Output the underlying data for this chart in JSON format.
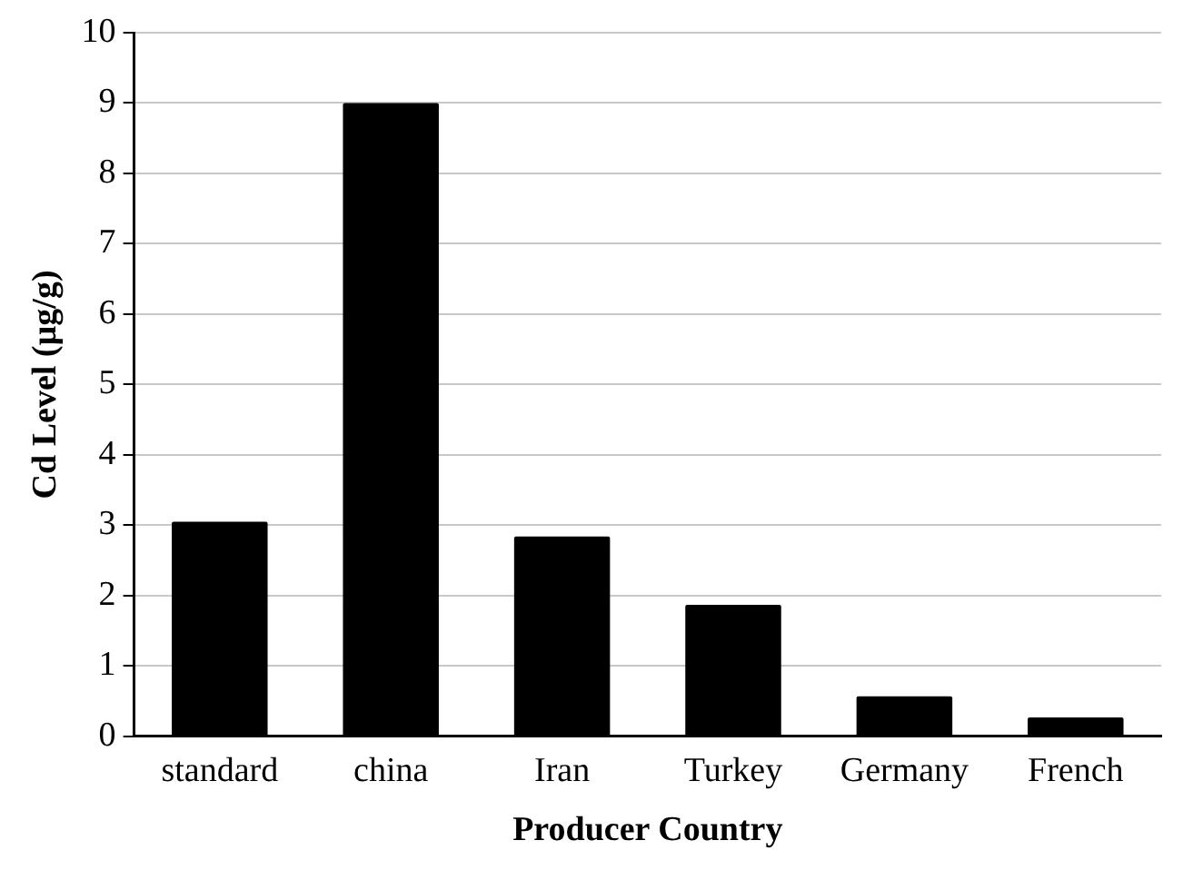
{
  "chart_data": {
    "type": "bar",
    "xlabel": "Producer Country",
    "ylabel": "Cd Level (µg/g)",
    "categories": [
      "standard",
      "china",
      "Iran",
      "Turkey",
      "Germany",
      "French"
    ],
    "values": [
      3.05,
      9.0,
      2.84,
      1.87,
      0.57,
      0.27
    ],
    "color": "#000000",
    "ylim": [
      0,
      10
    ],
    "yticks": [
      0,
      1,
      2,
      3,
      4,
      5,
      6,
      7,
      8,
      9,
      10
    ],
    "grid": "y",
    "legend": false
  }
}
